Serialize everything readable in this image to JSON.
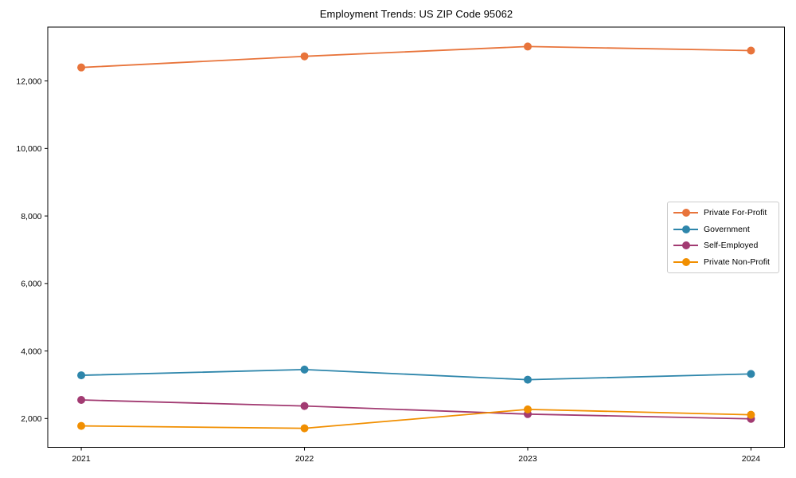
{
  "title": "Employment Trends: US ZIP Code 95062",
  "chart_data": {
    "type": "line",
    "title": "Employment Trends: US ZIP Code 95062",
    "xlabel": "",
    "ylabel": "",
    "x": [
      2021,
      2022,
      2023,
      2024
    ],
    "xtick_labels": [
      "2021",
      "2022",
      "2023",
      "2024"
    ],
    "yticks": [
      2000,
      4000,
      6000,
      8000,
      10000,
      12000
    ],
    "ytick_labels": [
      "2,000",
      "4,000",
      "6,000",
      "8,000",
      "10,000",
      "12,000"
    ],
    "xlim": [
      2020.85,
      2024.15
    ],
    "ylim": [
      1146,
      13596
    ],
    "grid": false,
    "marker": "circle",
    "legend_position": "right",
    "series": [
      {
        "name": "Private For-Profit",
        "color": "#E8743B",
        "values": [
          12400,
          12730,
          13020,
          12900
        ]
      },
      {
        "name": "Government",
        "color": "#2E86AB",
        "values": [
          3280,
          3450,
          3150,
          3320
        ]
      },
      {
        "name": "Self-Employed",
        "color": "#A23B72",
        "values": [
          2550,
          2370,
          2130,
          1990
        ]
      },
      {
        "name": "Private Non-Profit",
        "color": "#F18F01",
        "values": [
          1780,
          1710,
          2270,
          2110
        ]
      }
    ]
  }
}
